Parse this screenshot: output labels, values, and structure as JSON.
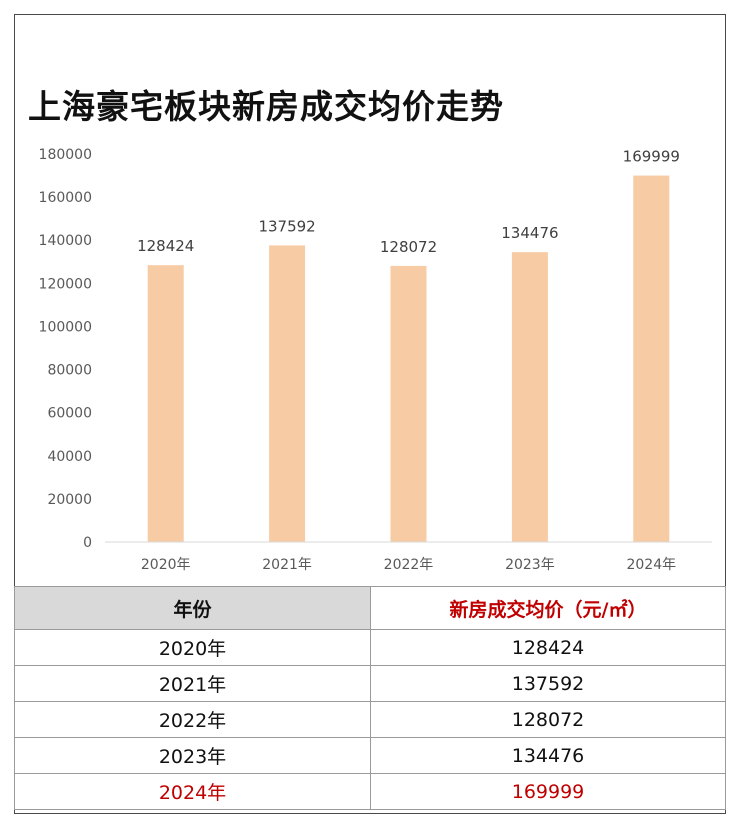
{
  "chart_data": {
    "type": "bar",
    "title": "上海豪宅板块新房成交均价走势",
    "categories": [
      "2020年",
      "2021年",
      "2022年",
      "2023年",
      "2024年"
    ],
    "values": [
      128424,
      137592,
      128072,
      134476,
      169999
    ],
    "data_labels": [
      "128424",
      "137592",
      "128072",
      "134476",
      "169999"
    ],
    "ylim": [
      0,
      180000
    ],
    "yticks": [
      "0",
      "20000",
      "40000",
      "60000",
      "80000",
      "100000",
      "120000",
      "140000",
      "160000",
      "180000"
    ],
    "bar_color": "#f7cba4",
    "grid": false,
    "legend": "none"
  },
  "table": {
    "headers": {
      "year": "年份",
      "price": "新房成交均价（元/㎡）"
    },
    "rows": [
      {
        "year": "2020年",
        "price": "128424"
      },
      {
        "year": "2021年",
        "price": "137592"
      },
      {
        "year": "2022年",
        "price": "128072"
      },
      {
        "year": "2023年",
        "price": "134476"
      },
      {
        "year": "2024年",
        "price": "169999"
      }
    ],
    "highlight_color": "#c00000"
  }
}
